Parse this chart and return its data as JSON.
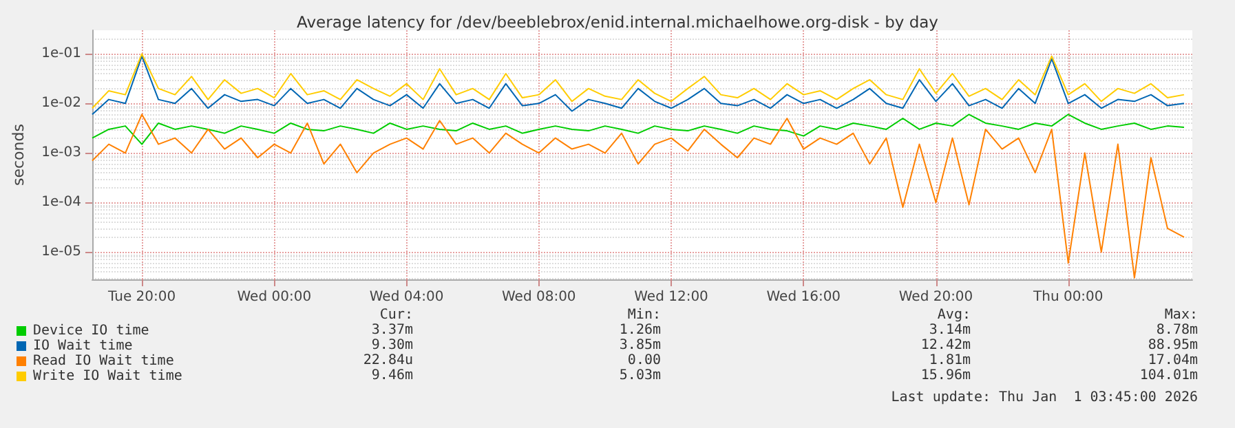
{
  "chart_data": {
    "type": "line",
    "title": "Average latency for /dev/beeblebrox/enid.internal.michaelhowe.org-disk - by day",
    "ylabel": "seconds",
    "log": "y",
    "grid": true,
    "marker": "none",
    "line_style": "solid",
    "legend": "bottom left",
    "x": [
      "2025-12-30T18:30",
      "2025-12-30T19:00",
      "2025-12-30T19:30",
      "2025-12-30T20:00",
      "2025-12-30T20:30",
      "2025-12-30T21:00",
      "2025-12-30T21:30",
      "2025-12-30T22:00",
      "2025-12-30T22:30",
      "2025-12-30T23:00",
      "2025-12-30T23:30",
      "2025-12-31T00:00",
      "2025-12-31T00:30",
      "2025-12-31T01:00",
      "2025-12-31T01:30",
      "2025-12-31T02:00",
      "2025-12-31T02:30",
      "2025-12-31T03:00",
      "2025-12-31T03:30",
      "2025-12-31T04:00",
      "2025-12-31T04:30",
      "2025-12-31T05:00",
      "2025-12-31T05:30",
      "2025-12-31T06:00",
      "2025-12-31T06:30",
      "2025-12-31T07:00",
      "2025-12-31T07:30",
      "2025-12-31T08:00",
      "2025-12-31T08:30",
      "2025-12-31T09:00",
      "2025-12-31T09:30",
      "2025-12-31T10:00",
      "2025-12-31T10:30",
      "2025-12-31T11:00",
      "2025-12-31T11:30",
      "2025-12-31T12:00",
      "2025-12-31T12:30",
      "2025-12-31T13:00",
      "2025-12-31T13:30",
      "2025-12-31T14:00",
      "2025-12-31T14:30",
      "2025-12-31T15:00",
      "2025-12-31T15:30",
      "2025-12-31T16:00",
      "2025-12-31T16:30",
      "2025-12-31T17:00",
      "2025-12-31T17:30",
      "2025-12-31T18:00",
      "2025-12-31T18:30",
      "2025-12-31T19:00",
      "2025-12-31T19:30",
      "2025-12-31T20:00",
      "2025-12-31T20:30",
      "2025-12-31T21:00",
      "2025-12-31T21:30",
      "2025-12-31T22:00",
      "2025-12-31T22:30",
      "2025-12-31T23:00",
      "2025-12-31T23:30",
      "2026-01-01T00:00",
      "2026-01-01T00:30",
      "2026-01-01T01:00",
      "2026-01-01T01:30",
      "2026-01-01T02:00",
      "2026-01-01T02:30",
      "2026-01-01T03:00",
      "2026-01-01T03:30"
    ],
    "xlim": [
      "2025-12-30T18:30",
      "2026-01-01T03:45"
    ],
    "xticks": [
      {
        "value": "2025-12-30T20:00",
        "label": "Tue 20:00"
      },
      {
        "value": "2025-12-31T00:00",
        "label": "Wed 00:00"
      },
      {
        "value": "2025-12-31T04:00",
        "label": "Wed 04:00"
      },
      {
        "value": "2025-12-31T08:00",
        "label": "Wed 08:00"
      },
      {
        "value": "2025-12-31T12:00",
        "label": "Wed 12:00"
      },
      {
        "value": "2025-12-31T16:00",
        "label": "Wed 16:00"
      },
      {
        "value": "2025-12-31T20:00",
        "label": "Wed 20:00"
      },
      {
        "value": "2026-01-01T00:00",
        "label": "Thu 00:00"
      }
    ],
    "ylim": [
      2.8e-06,
      0.3
    ],
    "yticks": [
      {
        "value": 1e-05,
        "label": "1e-05"
      },
      {
        "value": 0.0001,
        "label": "1e-04"
      },
      {
        "value": 0.001,
        "label": "1e-03"
      },
      {
        "value": 0.01,
        "label": "1e-02"
      },
      {
        "value": 0.1,
        "label": "1e-01"
      }
    ],
    "series": [
      {
        "name": "Device IO time",
        "color": "#00cc00",
        "values": [
          0.002,
          0.003,
          0.0035,
          0.0015,
          0.004,
          0.003,
          0.0035,
          0.003,
          0.0025,
          0.0035,
          0.003,
          0.0025,
          0.004,
          0.003,
          0.0028,
          0.0035,
          0.003,
          0.0025,
          0.004,
          0.003,
          0.0035,
          0.003,
          0.0028,
          0.004,
          0.003,
          0.0035,
          0.0025,
          0.003,
          0.0035,
          0.003,
          0.0028,
          0.0035,
          0.003,
          0.0025,
          0.0035,
          0.003,
          0.0028,
          0.0035,
          0.003,
          0.0025,
          0.0035,
          0.003,
          0.0028,
          0.0022,
          0.0035,
          0.003,
          0.004,
          0.0035,
          0.003,
          0.005,
          0.003,
          0.004,
          0.0035,
          0.006,
          0.004,
          0.0035,
          0.003,
          0.004,
          0.0035,
          0.006,
          0.004,
          0.003,
          0.0035,
          0.004,
          0.003,
          0.0035,
          0.0033
        ]
      },
      {
        "name": "IO Wait time",
        "color": "#0066b3",
        "values": [
          0.006,
          0.012,
          0.01,
          0.09,
          0.012,
          0.01,
          0.02,
          0.008,
          0.015,
          0.011,
          0.012,
          0.009,
          0.02,
          0.01,
          0.012,
          0.008,
          0.02,
          0.012,
          0.009,
          0.015,
          0.008,
          0.025,
          0.01,
          0.012,
          0.008,
          0.025,
          0.009,
          0.01,
          0.015,
          0.007,
          0.012,
          0.01,
          0.008,
          0.02,
          0.011,
          0.008,
          0.012,
          0.02,
          0.01,
          0.009,
          0.012,
          0.008,
          0.015,
          0.01,
          0.012,
          0.008,
          0.012,
          0.02,
          0.01,
          0.008,
          0.03,
          0.011,
          0.025,
          0.009,
          0.012,
          0.008,
          0.02,
          0.01,
          0.08,
          0.01,
          0.015,
          0.008,
          0.012,
          0.011,
          0.015,
          0.009,
          0.01
        ]
      },
      {
        "name": "Read IO Wait time",
        "color": "#ff8000",
        "values": [
          0.0007,
          0.0015,
          0.001,
          0.006,
          0.0015,
          0.002,
          0.001,
          0.003,
          0.0012,
          0.002,
          0.0008,
          0.0015,
          0.001,
          0.004,
          0.0006,
          0.0015,
          0.0004,
          0.001,
          0.0015,
          0.002,
          0.0012,
          0.0045,
          0.0015,
          0.002,
          0.001,
          0.0025,
          0.0015,
          0.001,
          0.002,
          0.0012,
          0.0015,
          0.001,
          0.0025,
          0.0006,
          0.0015,
          0.002,
          0.0011,
          0.003,
          0.0015,
          0.0008,
          0.002,
          0.0015,
          0.005,
          0.0012,
          0.002,
          0.0015,
          0.0025,
          0.0006,
          0.002,
          8e-05,
          0.0015,
          0.0001,
          0.002,
          9e-05,
          0.003,
          0.0012,
          0.002,
          0.0004,
          0.003,
          6e-06,
          0.001,
          1e-05,
          0.0015,
          3e-06,
          0.0008,
          3e-05,
          2e-05
        ]
      },
      {
        "name": "Write IO Wait time",
        "color": "#ffcc00",
        "values": [
          0.008,
          0.018,
          0.015,
          0.1,
          0.02,
          0.015,
          0.035,
          0.012,
          0.03,
          0.016,
          0.02,
          0.013,
          0.04,
          0.015,
          0.018,
          0.012,
          0.03,
          0.02,
          0.014,
          0.025,
          0.012,
          0.05,
          0.015,
          0.02,
          0.012,
          0.04,
          0.013,
          0.015,
          0.03,
          0.011,
          0.02,
          0.014,
          0.012,
          0.03,
          0.016,
          0.011,
          0.02,
          0.035,
          0.015,
          0.013,
          0.02,
          0.012,
          0.025,
          0.015,
          0.018,
          0.012,
          0.02,
          0.03,
          0.015,
          0.012,
          0.05,
          0.016,
          0.04,
          0.014,
          0.02,
          0.012,
          0.03,
          0.015,
          0.09,
          0.015,
          0.025,
          0.011,
          0.02,
          0.016,
          0.025,
          0.013,
          0.015
        ]
      }
    ],
    "annotations": [
      "Cur:",
      "Min:",
      "Avg:",
      "Max:",
      "3.37m",
      "1.26m",
      "3.14m",
      "8.78m",
      "9.30m",
      "3.85m",
      "12.42m",
      "88.95m",
      "22.84u",
      "0.00",
      "1.81m",
      "17.04m",
      "9.46m",
      "5.03m",
      "15.96m",
      "104.01m",
      "Last update: Thu Jan  1 03:45:00 2026"
    ]
  }
}
